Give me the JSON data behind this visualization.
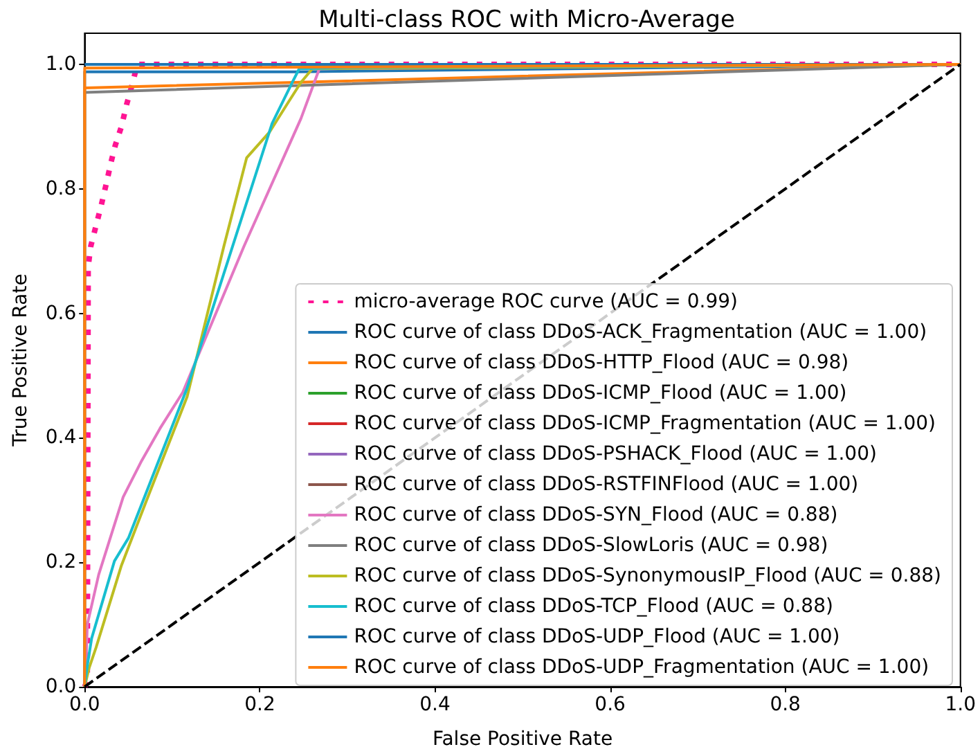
{
  "chart_data": {
    "type": "line",
    "title": "Multi-class ROC with Micro-Average",
    "xlabel": "False Positive Rate",
    "ylabel": "True Positive Rate",
    "xlim": [
      0,
      1
    ],
    "ylim": [
      0,
      1.05
    ],
    "xticks": [
      {
        "value": 0,
        "label": "0.0"
      },
      0.2,
      0.4,
      0.6,
      0.8,
      {
        "value": 1,
        "label": "1.0"
      }
    ],
    "yticks": [
      {
        "value": 0,
        "label": "0.0"
      },
      0.2,
      0.4,
      0.6,
      0.8,
      {
        "value": 1,
        "label": "1.0"
      }
    ],
    "legend": "bottom right",
    "series": [
      {
        "name": "micro-average ROC curve (AUC = 0.99)",
        "color": "#ff1493",
        "line_style": "dotted",
        "x": [
          0,
          0.003,
          0.004,
          0.007,
          0.013,
          0.019,
          0.0245,
          0.03,
          0.035,
          0.042,
          0.048,
          0.055,
          0.06,
          1
        ],
        "values": [
          0,
          0.01,
          0.675,
          0.708,
          0.741,
          0.774,
          0.807,
          0.842,
          0.87,
          0.9,
          0.936,
          0.971,
          1,
          1
        ]
      },
      {
        "name": "ROC curve of class DDoS-ACK_Fragmentation (AUC = 1.00)",
        "color": "#1f77b4",
        "x": [
          0,
          0,
          0.242,
          1
        ],
        "values": [
          0,
          0.988,
          0.988,
          1
        ]
      },
      {
        "name": "ROC curve of class DDoS-HTTP_Flood (AUC = 0.98)",
        "color": "#ff7f0e",
        "x": [
          0,
          0,
          1
        ],
        "values": [
          0,
          0.962,
          1
        ]
      },
      {
        "name": "ROC curve of class DDoS-ICMP_Flood (AUC = 1.00)",
        "color": "#2ca02c",
        "values": [
          null
        ]
      },
      {
        "name": "ROC curve of class DDoS-ICMP_Fragmentation (AUC = 1.00)",
        "color": "#d62728",
        "values": [
          null
        ]
      },
      {
        "name": "ROC curve of class DDoS-PSHACK_Flood (AUC = 1.00)",
        "color": "#9467bd",
        "values": [
          null
        ]
      },
      {
        "name": "ROC curve of class DDoS-RSTFINFlood (AUC = 1.00)",
        "color": "#8c564b",
        "values": [
          null
        ]
      },
      {
        "name": "ROC curve of class DDoS-SYN_Flood (AUC = 0.88)",
        "color": "#e377c2",
        "x": [
          0,
          0.001,
          0.003,
          0.016,
          0.044,
          0.065,
          0.086,
          0.112,
          0.182,
          0.247,
          0.268,
          1
        ],
        "values": [
          0,
          0.012,
          0.1,
          0.18,
          0.305,
          0.363,
          0.415,
          0.473,
          0.708,
          0.913,
          0.993,
          1
        ]
      },
      {
        "name": "ROC curve of class DDoS-SlowLoris (AUC = 0.98)",
        "color": "#7f7f7f",
        "x": [
          0,
          0,
          1
        ],
        "values": [
          0,
          0.955,
          1
        ]
      },
      {
        "name": "ROC curve of class DDoS-SynonymousIP_Flood (AUC = 0.88)",
        "color": "#bcbd22",
        "x": [
          0,
          0.005,
          0.013,
          0.042,
          0.07,
          0.117,
          0.159,
          0.185,
          0.211,
          0.232,
          0.247,
          0.26,
          1
        ],
        "values": [
          0,
          0.03,
          0.063,
          0.195,
          0.297,
          0.466,
          0.708,
          0.85,
          0.891,
          0.938,
          0.971,
          0.993,
          1
        ]
      },
      {
        "name": "ROC curve of class DDoS-TCP_Flood (AUC = 0.88)",
        "color": "#17becf",
        "x": [
          0,
          0.003,
          0.008,
          0.034,
          0.05,
          0.117,
          0.169,
          0.214,
          0.237,
          0.245,
          0.3,
          1
        ],
        "values": [
          0,
          0.034,
          0.078,
          0.202,
          0.239,
          0.48,
          0.708,
          0.905,
          0.971,
          0.993,
          0.995,
          1
        ]
      },
      {
        "name": "ROC curve of class DDoS-UDP_Flood (AUC = 1.00)",
        "color": "#1f77b4",
        "x": [
          0,
          1
        ],
        "values": [
          1,
          1
        ]
      },
      {
        "name": "ROC curve of class DDoS-UDP_Fragmentation (AUC = 1.00)",
        "color": "#ff7f0e",
        "x": [
          0,
          0,
          1
        ],
        "values": [
          0,
          0.994,
          1
        ]
      },
      {
        "color": "#000000",
        "line_style": "dashed",
        "x": [
          0,
          1
        ],
        "values": [
          0,
          1
        ]
      }
    ]
  }
}
